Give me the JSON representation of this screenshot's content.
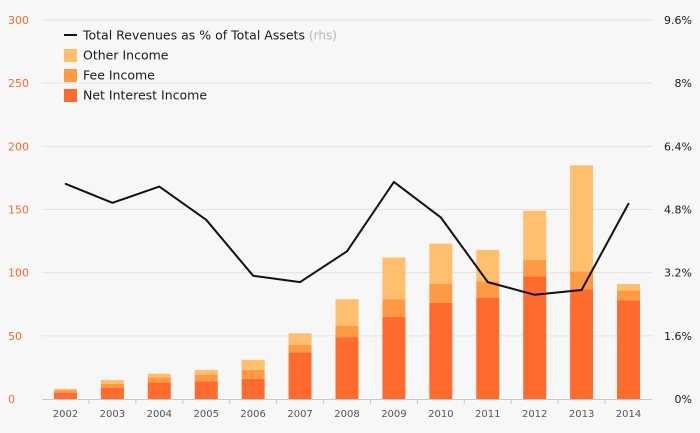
{
  "chart_data": {
    "type": "bar",
    "subtype": "stacked-bar-with-line",
    "categories": [
      "2002",
      "2003",
      "2004",
      "2005",
      "2006",
      "2007",
      "2008",
      "2009",
      "2010",
      "2011",
      "2012",
      "2013",
      "2014"
    ],
    "series": [
      {
        "name": "Net Interest Income",
        "type": "bar",
        "axis": "left",
        "color": "#ff6b2c",
        "values": [
          5,
          9,
          13,
          14,
          16,
          37,
          49,
          65,
          76,
          80,
          97,
          87,
          78
        ]
      },
      {
        "name": "Fee Income",
        "type": "bar",
        "axis": "left",
        "color": "#ff9a44",
        "values": [
          2,
          3,
          4,
          5,
          7,
          6,
          9,
          14,
          15,
          13,
          13,
          14,
          8
        ]
      },
      {
        "name": "Other Income",
        "type": "bar",
        "axis": "left",
        "color": "#ffbf6e",
        "values": [
          1,
          3,
          3,
          4,
          8,
          9,
          21,
          33,
          32,
          25,
          39,
          84,
          5
        ]
      },
      {
        "name": "Total Revenues as % of Total Assets",
        "name_suffix": "(rhs)",
        "type": "line",
        "axis": "right",
        "color": "#111111",
        "values": [
          5.45,
          4.97,
          5.38,
          4.54,
          3.12,
          2.96,
          3.74,
          5.5,
          4.6,
          2.96,
          2.64,
          2.76,
          4.95
        ]
      }
    ],
    "ylim_left": [
      0,
      300
    ],
    "yticks_left": [
      "0",
      "50",
      "100",
      "150",
      "200",
      "250",
      "300"
    ],
    "ylim_right": [
      0,
      9.6
    ],
    "yticks_right": [
      "0%",
      "1.6%",
      "3.2%",
      "4.8%",
      "6.4%",
      "8%",
      "9.6%"
    ],
    "grid": "horizontal",
    "legend_position": "top-left",
    "title": "",
    "xlabel": "",
    "ylabel": ""
  }
}
